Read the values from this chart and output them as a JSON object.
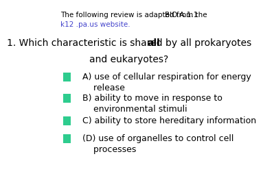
{
  "header_left": "The following review is adapted from the\nk12 .pa.us website.",
  "header_right": "BIO.A.1.1",
  "question": "1. Which characteristic is shared by ",
  "question_bold": "all",
  "question_end": " prokaryotes\nand eukaryotes?",
  "options": [
    "A) use of cellular respiration for energy\n    release",
    "B) ability to move in response to\n    environmental stimuli",
    "C) ability to store hereditary information",
    "(D) use of organelles to control cell\n    processes"
  ],
  "box_color": "#2ecc8e",
  "bg_color": "#ffffff",
  "link_color": "#4444cc",
  "text_color": "#000000",
  "header_fontsize": 7.5,
  "question_fontsize": 10,
  "option_fontsize": 9
}
